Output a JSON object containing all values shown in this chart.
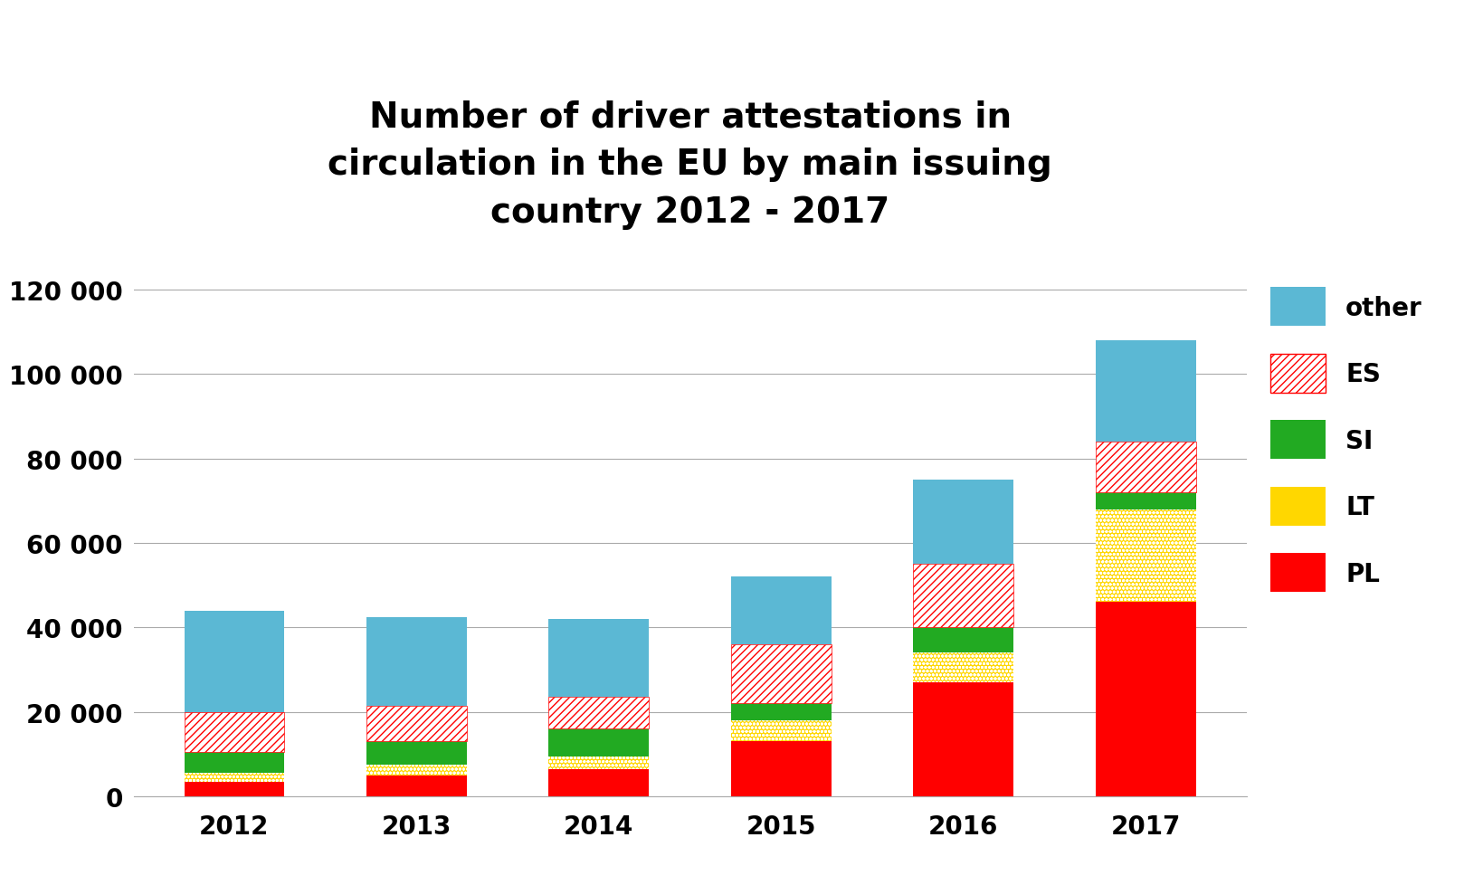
{
  "years": [
    "2012",
    "2013",
    "2014",
    "2015",
    "2016",
    "2017"
  ],
  "PL": [
    3500,
    5000,
    6500,
    13000,
    27000,
    46000
  ],
  "LT": [
    2000,
    2500,
    3000,
    5000,
    7000,
    22000
  ],
  "SI": [
    5000,
    5500,
    6500,
    4000,
    6000,
    4000
  ],
  "ES": [
    9500,
    8500,
    7500,
    14000,
    15000,
    12000
  ],
  "other": [
    24000,
    21000,
    18500,
    16000,
    20000,
    24000
  ],
  "title": "Number of driver attestations in\ncirculation in the EU by main issuing\ncountry 2012 - 2017",
  "title_fontsize": 28,
  "tick_fontsize": 20,
  "legend_fontsize": 20,
  "ylim": [
    0,
    130000
  ],
  "yticks": [
    0,
    20000,
    40000,
    60000,
    80000,
    100000,
    120000
  ],
  "ytick_labels": [
    "0",
    "20 000",
    "40 000",
    "60 000",
    "80 000",
    "100 000",
    "120 000"
  ],
  "color_PL": "#FF0000",
  "color_LT": "#FFD700",
  "color_SI": "#22AA22",
  "color_other": "#5BB8D4",
  "bar_width": 0.55,
  "bg_color": "#FFFFFF",
  "grid_color": "#AAAAAA",
  "hatch_ES": "////",
  "hatch_LT": "oo"
}
